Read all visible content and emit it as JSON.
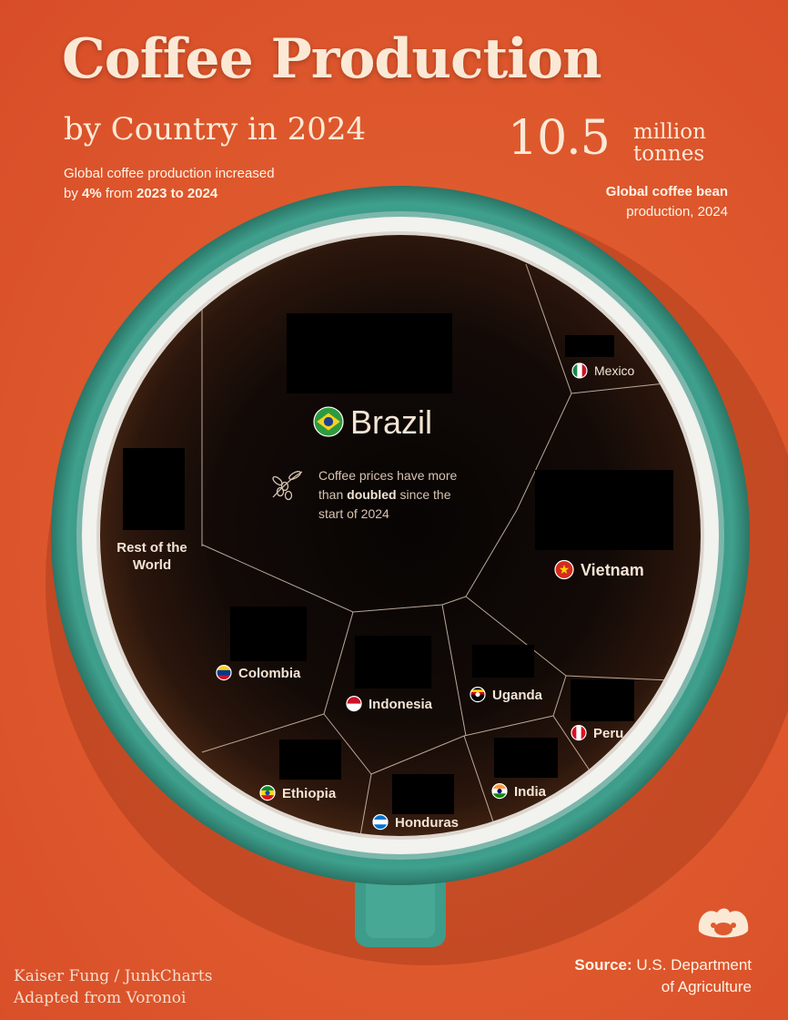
{
  "header": {
    "title": "Coffee Production",
    "subtitle": "by Country in 2024",
    "left_note_prefix": "Global coffee production increased by ",
    "left_note_bold1": "4%",
    "left_note_mid": " from ",
    "left_note_bold2": "2023 to 2024",
    "big_number": "10.5",
    "big_unit_line1": "million",
    "big_unit_line2": "tonnes",
    "right_note_bold": "Global coffee bean",
    "right_note_rest": " production, 2024"
  },
  "annotation": {
    "line1": "Coffee prices have more",
    "line2_pre": "than ",
    "line2_bold": "doubled",
    "line2_post": " since the",
    "line3": "start of 2024"
  },
  "footer": {
    "credit_line1": "Kaiser Fung / JunkCharts",
    "credit_line2": "Adapted from Voronoi",
    "source_bold": "Source:",
    "source_line1_rest": " U.S. Department",
    "source_line2": "of Agriculture"
  },
  "colors": {
    "background": "#df5a2e",
    "text_cream": "#fbe9d6",
    "cup_teal": "#3d9c8a",
    "coffee_dark": "#120a07",
    "cell_line": "#d8c3b0"
  },
  "chart_data": {
    "type": "voronoi",
    "title": "Coffee Production",
    "subtitle": "by Country in 2024",
    "unit": "million tonnes",
    "total": 10.5,
    "regions": [
      {
        "name": "Brazil",
        "flag": "brazil-flag-icon"
      },
      {
        "name": "Vietnam",
        "flag": "vietnam-flag-icon"
      },
      {
        "name": "Mexico",
        "flag": "mexico-flag-icon"
      },
      {
        "name": "Rest of the World",
        "flag": ""
      },
      {
        "name": "Colombia",
        "flag": "colombia-flag-icon"
      },
      {
        "name": "Indonesia",
        "flag": "indonesia-flag-icon"
      },
      {
        "name": "Uganda",
        "flag": "uganda-flag-icon"
      },
      {
        "name": "Peru",
        "flag": "peru-flag-icon"
      },
      {
        "name": "Ethiopia",
        "flag": "ethiopia-flag-icon"
      },
      {
        "name": "Honduras",
        "flag": "honduras-flag-icon"
      },
      {
        "name": "India",
        "flag": "india-flag-icon"
      }
    ]
  }
}
